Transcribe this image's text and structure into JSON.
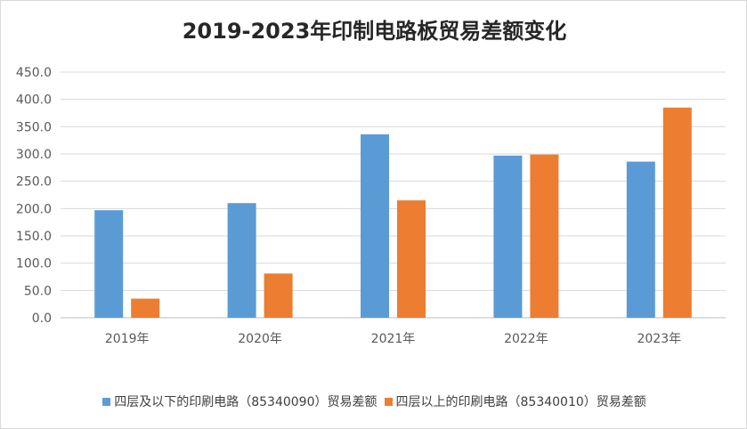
{
  "chart_data": {
    "type": "bar",
    "title": "2019-2023年印制电路板贸易差额变化",
    "categories": [
      "2019年",
      "2020年",
      "2021年",
      "2022年",
      "2023年"
    ],
    "series": [
      {
        "name": "四层及以下的印刷电路（85340090）贸易差额",
        "color": "#5b9bd5",
        "values": [
          197,
          210,
          336,
          297,
          286
        ]
      },
      {
        "name": "四层以上的印刷电路（85340010）贸易差额",
        "color": "#ed7d31",
        "values": [
          35,
          81,
          215,
          299,
          385
        ]
      }
    ],
    "ylim": [
      0,
      450
    ],
    "yticks": [
      "0.0",
      "50.0",
      "100.0",
      "150.0",
      "200.0",
      "250.0",
      "300.0",
      "350.0",
      "400.0",
      "450.0"
    ],
    "grid": true,
    "legend_position": "bottom"
  }
}
